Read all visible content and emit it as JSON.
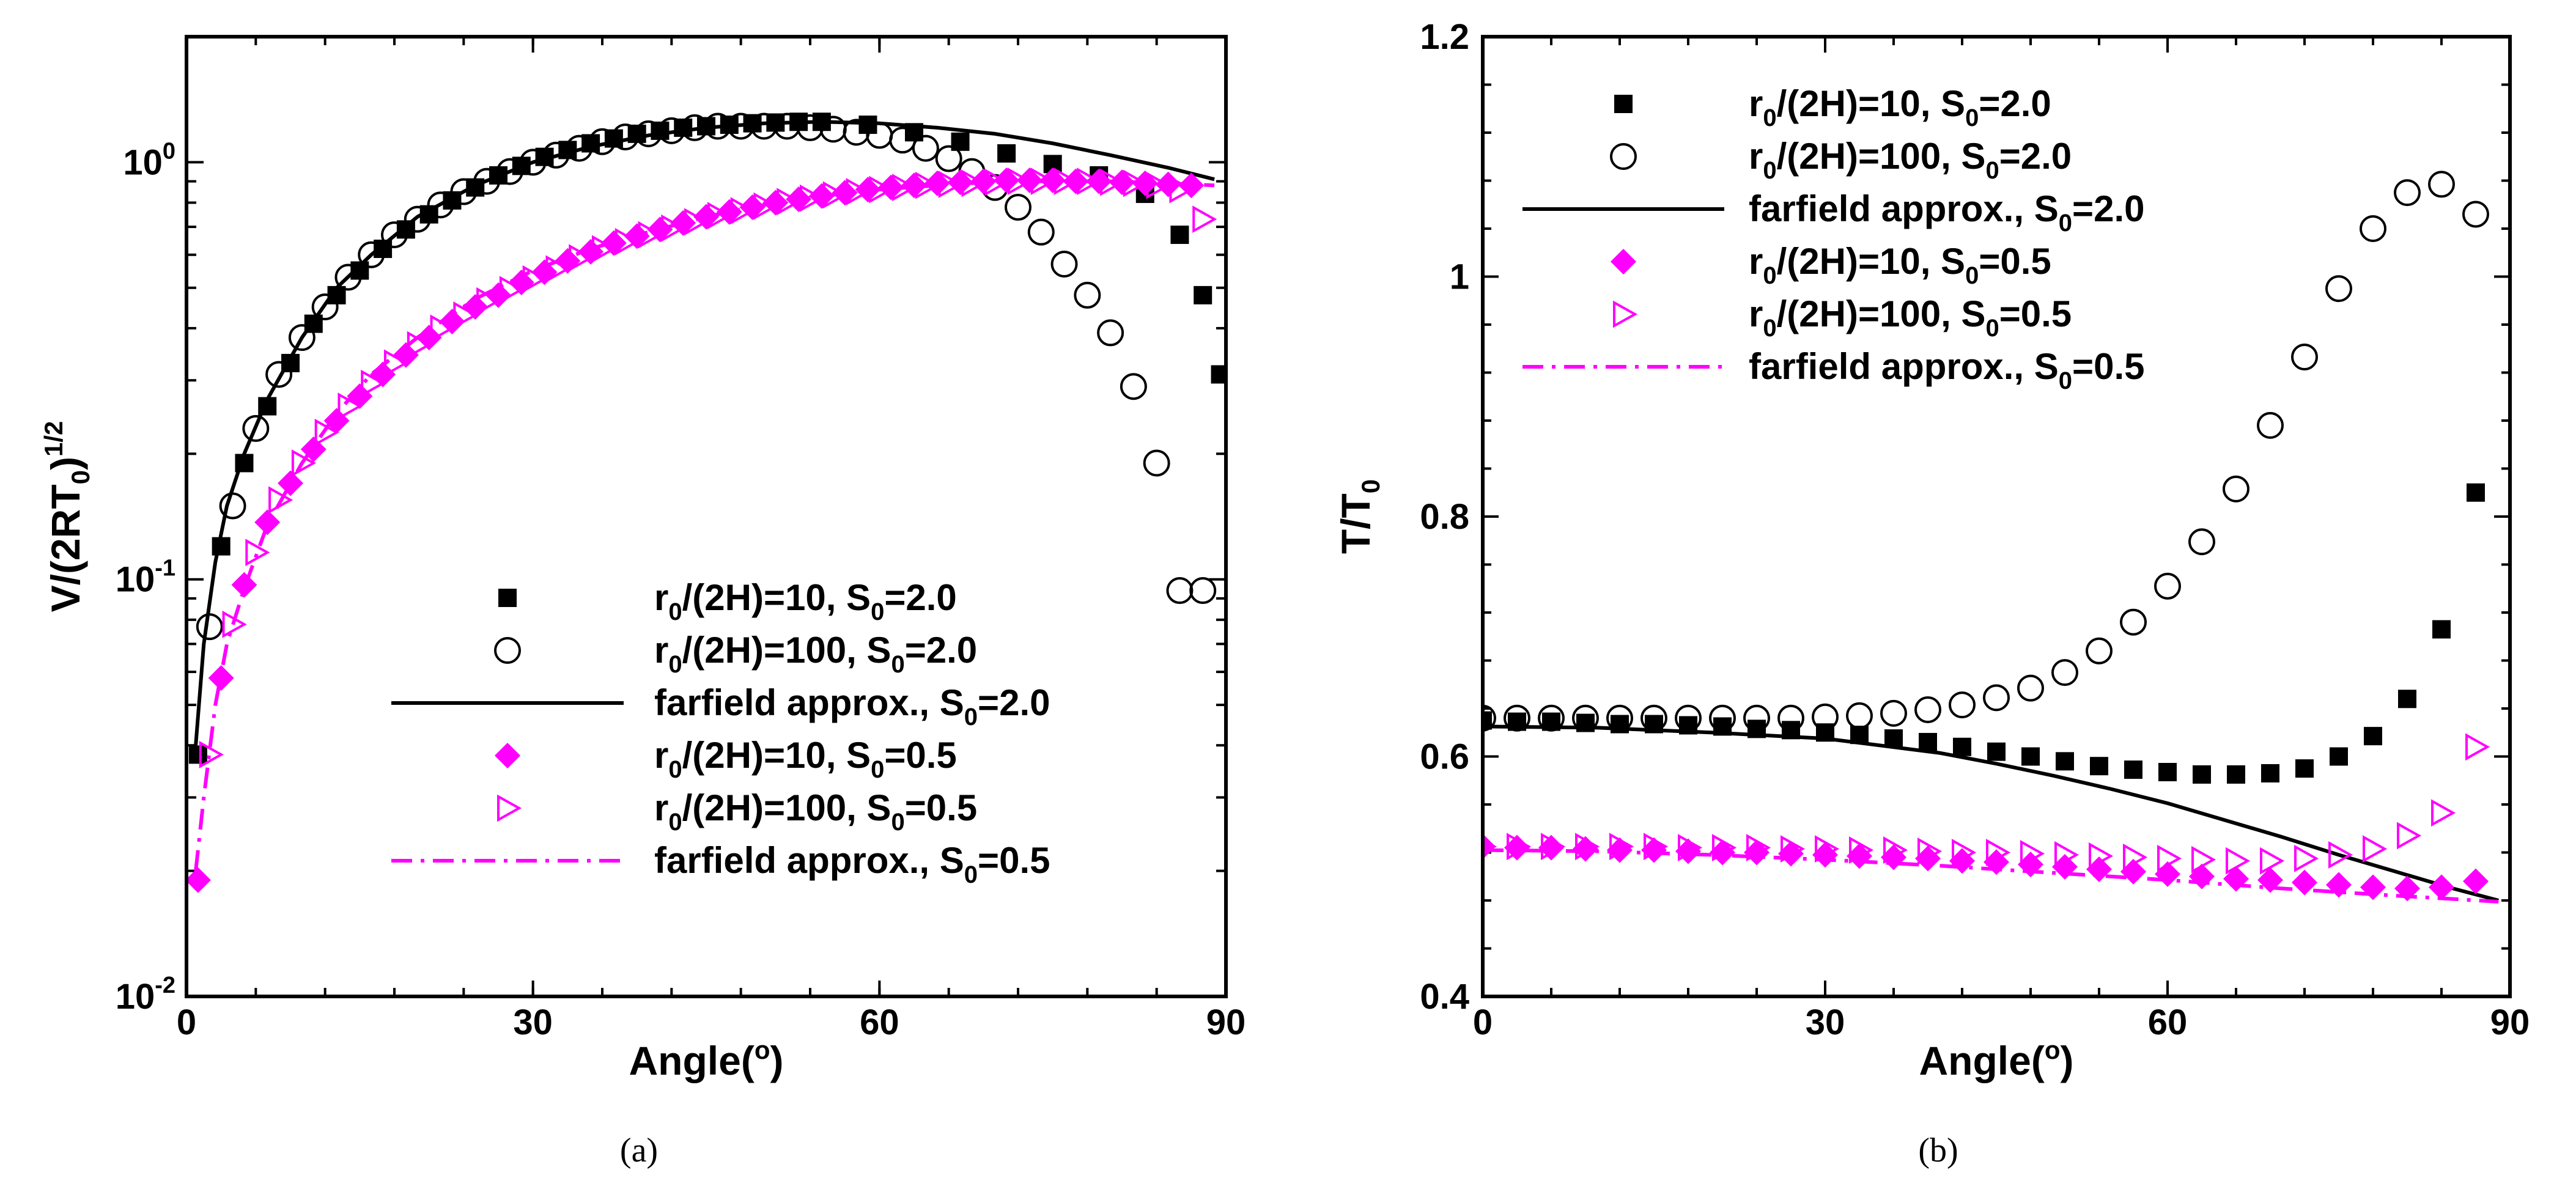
{
  "colors": {
    "black": "#000000",
    "magenta": "#ff00ff"
  },
  "chart_data": [
    {
      "panel": "a",
      "type": "scatter",
      "caption": "(a)",
      "xlabel": "Angle(",
      "xlabel_sup": "o",
      "xlabel_end": ")",
      "ylabel": "V/(2RT",
      "ylabel_sub": "0",
      "ylabel_end": ")",
      "ylabel_sup": "1/2",
      "yscale": "log",
      "xlim": [
        0,
        90
      ],
      "ylim": [
        0.01,
        2
      ],
      "xticks": [
        "0",
        "30",
        "60",
        "90"
      ],
      "yticks": [
        {
          "value": 1,
          "base": "10",
          "exp": "0"
        },
        {
          "value": 0.1,
          "base": "10",
          "exp": "-1"
        },
        {
          "value": 0.01,
          "base": "10",
          "exp": "-2"
        }
      ],
      "legend_position": "center-right",
      "series": [
        {
          "name": "r0/(2H)=10, S0=2.0",
          "label_parts": [
            "r",
            "0",
            "/(2H)=10, S",
            "0",
            "=2.0"
          ],
          "marker": "filled-square",
          "color": "#000000",
          "x": [
            1,
            3,
            5,
            7,
            9,
            11,
            13,
            15,
            17,
            19,
            21,
            23,
            25,
            27,
            29,
            31,
            33,
            35,
            37,
            39,
            41,
            43,
            45,
            47,
            49,
            51,
            53,
            55,
            59,
            63,
            67,
            71,
            75,
            79,
            83,
            86,
            88,
            89.5
          ],
          "y": [
            0.038,
            0.12,
            0.19,
            0.26,
            0.33,
            0.41,
            0.48,
            0.55,
            0.62,
            0.69,
            0.75,
            0.81,
            0.87,
            0.93,
            0.98,
            1.03,
            1.07,
            1.11,
            1.14,
            1.17,
            1.19,
            1.21,
            1.22,
            1.23,
            1.24,
            1.245,
            1.25,
            1.25,
            1.23,
            1.18,
            1.12,
            1.05,
            0.99,
            0.93,
            0.84,
            0.67,
            0.48,
            0.31
          ]
        },
        {
          "name": "r0/(2H)=100, S0=2.0",
          "label_parts": [
            "r",
            "0",
            "/(2H)=100, S",
            "0",
            "=2.0"
          ],
          "marker": "open-circle",
          "color": "#000000",
          "x": [
            2,
            4,
            6,
            8,
            10,
            12,
            14,
            16,
            18,
            20,
            22,
            24,
            26,
            28,
            30,
            32,
            34,
            36,
            38,
            40,
            42,
            44,
            46,
            48,
            50,
            52,
            54,
            56,
            58,
            60,
            62,
            64,
            66,
            68,
            70,
            72,
            74,
            76,
            78,
            80,
            82,
            84,
            86,
            88
          ],
          "y": [
            0.077,
            0.15,
            0.23,
            0.31,
            0.38,
            0.45,
            0.53,
            0.6,
            0.67,
            0.73,
            0.79,
            0.85,
            0.9,
            0.95,
            1.0,
            1.04,
            1.08,
            1.12,
            1.15,
            1.17,
            1.19,
            1.21,
            1.22,
            1.22,
            1.22,
            1.22,
            1.21,
            1.2,
            1.18,
            1.16,
            1.13,
            1.08,
            1.02,
            0.95,
            0.87,
            0.78,
            0.68,
            0.57,
            0.48,
            0.39,
            0.29,
            0.19,
            0.094,
            0.094
          ]
        },
        {
          "name": "farfield approx., S0=2.0",
          "label_parts": [
            "farfield approx., S",
            "0",
            "=2.0"
          ],
          "marker": "solid-line",
          "color": "#000000",
          "x": [
            0.8,
            1.5,
            2.5,
            3.5,
            5,
            7,
            10,
            13,
            16,
            20,
            25,
            30,
            35,
            40,
            45,
            50,
            55,
            60,
            65,
            70,
            75,
            80,
            85,
            89
          ],
          "y": [
            0.04,
            0.07,
            0.11,
            0.15,
            0.2,
            0.27,
            0.38,
            0.5,
            0.6,
            0.74,
            0.88,
            1.0,
            1.09,
            1.16,
            1.21,
            1.24,
            1.25,
            1.24,
            1.21,
            1.17,
            1.11,
            1.04,
            0.97,
            0.91
          ]
        },
        {
          "name": "r0/(2H)=10, S0=0.5",
          "label_parts": [
            "r",
            "0",
            "/(2H)=10, S",
            "0",
            "=0.5"
          ],
          "marker": "filled-diamond",
          "color": "#ff00ff",
          "x": [
            1,
            3,
            5,
            7,
            9,
            11,
            13,
            15,
            17,
            19,
            21,
            23,
            25,
            27,
            29,
            31,
            33,
            35,
            37,
            39,
            41,
            43,
            45,
            47,
            49,
            51,
            53,
            55,
            57,
            59,
            61,
            63,
            65,
            67,
            69,
            71,
            73,
            75,
            77,
            79,
            81,
            83,
            85,
            87
          ],
          "y": [
            0.019,
            0.058,
            0.097,
            0.137,
            0.17,
            0.205,
            0.24,
            0.275,
            0.31,
            0.345,
            0.38,
            0.415,
            0.45,
            0.48,
            0.515,
            0.545,
            0.58,
            0.61,
            0.64,
            0.665,
            0.69,
            0.715,
            0.74,
            0.76,
            0.78,
            0.8,
            0.815,
            0.83,
            0.845,
            0.86,
            0.87,
            0.88,
            0.89,
            0.895,
            0.9,
            0.905,
            0.905,
            0.905,
            0.9,
            0.9,
            0.895,
            0.89,
            0.885,
            0.88
          ]
        },
        {
          "name": "r0/(2H)=100, S0=0.5",
          "label_parts": [
            "r",
            "0",
            "/(2H)=100, S",
            "0",
            "=0.5"
          ],
          "marker": "open-triangle-right",
          "color": "#ff00ff",
          "x": [
            2,
            4,
            6,
            8,
            10,
            12,
            14,
            16,
            18,
            20,
            22,
            24,
            26,
            28,
            30,
            32,
            34,
            36,
            38,
            40,
            42,
            44,
            46,
            48,
            50,
            52,
            54,
            56,
            58,
            60,
            62,
            64,
            66,
            68,
            70,
            72,
            74,
            76,
            78,
            80,
            82,
            84,
            86,
            88
          ],
          "y": [
            0.038,
            0.078,
            0.116,
            0.155,
            0.19,
            0.225,
            0.26,
            0.295,
            0.33,
            0.365,
            0.4,
            0.43,
            0.465,
            0.495,
            0.525,
            0.555,
            0.59,
            0.62,
            0.645,
            0.67,
            0.695,
            0.72,
            0.745,
            0.765,
            0.785,
            0.805,
            0.82,
            0.835,
            0.85,
            0.86,
            0.87,
            0.88,
            0.885,
            0.89,
            0.895,
            0.9,
            0.9,
            0.9,
            0.9,
            0.895,
            0.89,
            0.88,
            0.86,
            0.73
          ]
        },
        {
          "name": "farfield approx., S0=0.5",
          "label_parts": [
            "farfield approx., S",
            "0",
            "=0.5"
          ],
          "marker": "dash-dot-line",
          "color": "#ff00ff",
          "x": [
            0.8,
            1.5,
            2.5,
            3.5,
            5,
            7,
            10,
            13,
            16,
            20,
            25,
            30,
            35,
            40,
            45,
            50,
            55,
            60,
            65,
            70,
            75,
            80,
            85,
            89
          ],
          "y": [
            0.02,
            0.03,
            0.05,
            0.07,
            0.095,
            0.135,
            0.19,
            0.25,
            0.31,
            0.38,
            0.47,
            0.55,
            0.62,
            0.68,
            0.74,
            0.79,
            0.83,
            0.86,
            0.88,
            0.9,
            0.9,
            0.9,
            0.89,
            0.88
          ]
        }
      ]
    },
    {
      "panel": "b",
      "type": "scatter",
      "caption": "(b)",
      "xlabel": "Angle(",
      "xlabel_sup": "o",
      "xlabel_end": ")",
      "ylabel": "T/T",
      "ylabel_sub": "0",
      "ylabel_end": "",
      "ylabel_sup": "",
      "yscale": "linear",
      "xlim": [
        0,
        90
      ],
      "ylim": [
        0.4,
        1.2
      ],
      "xticks": [
        "0",
        "30",
        "60",
        "90"
      ],
      "yticks": [
        {
          "value": 0.4,
          "label": "0.4"
        },
        {
          "value": 0.6,
          "label": "0.6"
        },
        {
          "value": 0.8,
          "label": "0.8"
        },
        {
          "value": 1.0,
          "label": "1"
        },
        {
          "value": 1.2,
          "label": "1.2"
        }
      ],
      "legend_position": "top-left",
      "series": [
        {
          "name": "r0/(2H)=10, S0=2.0",
          "label_parts": [
            "r",
            "0",
            "/(2H)=10, S",
            "0",
            "=2.0"
          ],
          "marker": "filled-square",
          "color": "#000000",
          "x": [
            0,
            3,
            6,
            9,
            12,
            15,
            18,
            21,
            24,
            27,
            30,
            33,
            36,
            39,
            42,
            45,
            48,
            51,
            54,
            57,
            60,
            63,
            66,
            69,
            72,
            75,
            78,
            81,
            84,
            87
          ],
          "y": [
            0.63,
            0.629,
            0.629,
            0.628,
            0.627,
            0.627,
            0.626,
            0.625,
            0.623,
            0.622,
            0.62,
            0.618,
            0.615,
            0.612,
            0.608,
            0.604,
            0.6,
            0.596,
            0.592,
            0.589,
            0.587,
            0.585,
            0.585,
            0.586,
            0.59,
            0.6,
            0.617,
            0.648,
            0.706,
            0.82
          ]
        },
        {
          "name": "r0/(2H)=100, S0=2.0",
          "label_parts": [
            "r",
            "0",
            "/(2H)=100, S",
            "0",
            "=2.0"
          ],
          "marker": "open-circle",
          "color": "#000000",
          "x": [
            0,
            3,
            6,
            9,
            12,
            15,
            18,
            21,
            24,
            27,
            30,
            33,
            36,
            39,
            42,
            45,
            48,
            51,
            54,
            57,
            60,
            63,
            66,
            69,
            72,
            75,
            78,
            81,
            84,
            87
          ],
          "y": [
            0.632,
            0.632,
            0.632,
            0.632,
            0.632,
            0.632,
            0.632,
            0.632,
            0.632,
            0.632,
            0.633,
            0.634,
            0.636,
            0.639,
            0.643,
            0.649,
            0.657,
            0.67,
            0.688,
            0.712,
            0.742,
            0.779,
            0.823,
            0.876,
            0.933,
            0.99,
            1.04,
            1.07,
            1.077,
            1.052
          ]
        },
        {
          "name": "farfield approx., S0=2.0",
          "label_parts": [
            "farfield approx., S",
            "0",
            "=2.0"
          ],
          "marker": "solid-line",
          "color": "#000000",
          "x": [
            0,
            10,
            20,
            30,
            40,
            45,
            50,
            55,
            60,
            65,
            70,
            75,
            80,
            85,
            89
          ],
          "y": [
            0.625,
            0.624,
            0.62,
            0.615,
            0.603,
            0.594,
            0.584,
            0.573,
            0.561,
            0.547,
            0.533,
            0.518,
            0.504,
            0.49,
            0.48
          ]
        },
        {
          "name": "r0/(2H)=10, S0=0.5",
          "label_parts": [
            "r",
            "0",
            "/(2H)=10, S",
            "0",
            "=0.5"
          ],
          "marker": "filled-diamond",
          "color": "#ff00ff",
          "x": [
            0,
            3,
            6,
            9,
            12,
            15,
            18,
            21,
            24,
            27,
            30,
            33,
            36,
            39,
            42,
            45,
            48,
            51,
            54,
            57,
            60,
            63,
            66,
            69,
            72,
            75,
            78,
            81,
            84,
            87
          ],
          "y": [
            0.525,
            0.524,
            0.524,
            0.523,
            0.522,
            0.522,
            0.521,
            0.52,
            0.52,
            0.519,
            0.518,
            0.517,
            0.516,
            0.515,
            0.513,
            0.512,
            0.51,
            0.508,
            0.506,
            0.504,
            0.502,
            0.5,
            0.498,
            0.497,
            0.495,
            0.493,
            0.491,
            0.49,
            0.491,
            0.496
          ]
        },
        {
          "name": "r0/(2H)=100, S0=0.5",
          "label_parts": [
            "r",
            "0",
            "/(2H)=100, S",
            "0",
            "=0.5"
          ],
          "marker": "open-triangle-right",
          "color": "#ff00ff",
          "x": [
            0,
            3,
            6,
            9,
            12,
            15,
            18,
            21,
            24,
            27,
            30,
            33,
            36,
            39,
            42,
            45,
            48,
            51,
            54,
            57,
            60,
            63,
            66,
            69,
            72,
            75,
            78,
            81,
            84,
            87
          ],
          "y": [
            0.525,
            0.525,
            0.525,
            0.525,
            0.525,
            0.525,
            0.524,
            0.524,
            0.524,
            0.523,
            0.523,
            0.522,
            0.522,
            0.521,
            0.52,
            0.52,
            0.519,
            0.518,
            0.517,
            0.516,
            0.515,
            0.514,
            0.513,
            0.513,
            0.515,
            0.518,
            0.523,
            0.534,
            0.553,
            0.608
          ]
        },
        {
          "name": "farfield approx., S0=0.5",
          "label_parts": [
            "farfield approx., S",
            "0",
            "=0.5"
          ],
          "marker": "dash-dot-line",
          "color": "#ff00ff",
          "x": [
            0,
            10,
            20,
            30,
            40,
            50,
            60,
            70,
            80,
            89
          ],
          "y": [
            0.522,
            0.521,
            0.518,
            0.514,
            0.509,
            0.503,
            0.497,
            0.49,
            0.484,
            0.479
          ]
        }
      ]
    }
  ]
}
